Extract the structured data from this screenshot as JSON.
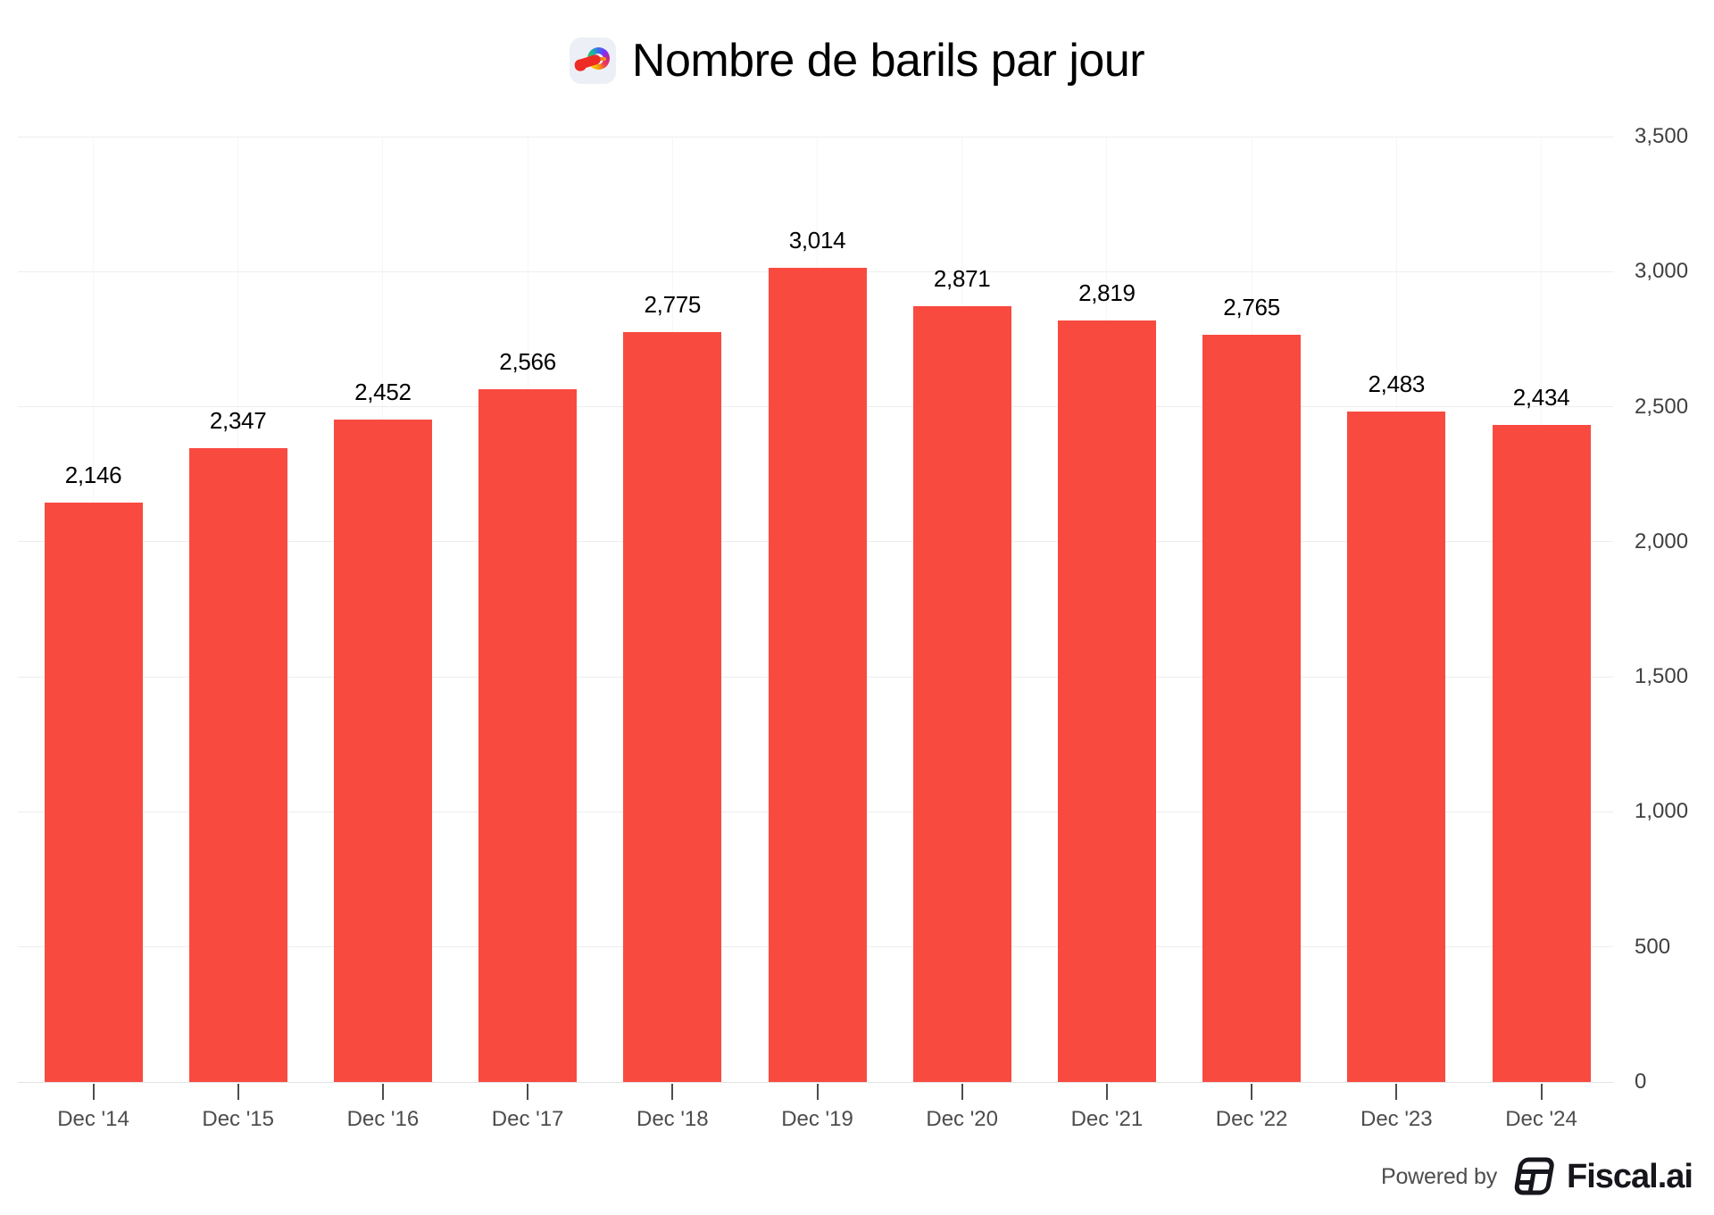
{
  "header": {
    "title": "Nombre de barils par jour",
    "logo": "totalenergies-logo"
  },
  "chart_data": {
    "type": "bar",
    "title": "Nombre de barils par jour",
    "categories": [
      "Dec '14",
      "Dec '15",
      "Dec '16",
      "Dec '17",
      "Dec '18",
      "Dec '19",
      "Dec '20",
      "Dec '21",
      "Dec '22",
      "Dec '23",
      "Dec '24"
    ],
    "values": [
      2146,
      2347,
      2452,
      2566,
      2775,
      3014,
      2871,
      2819,
      2765,
      2483,
      2434
    ],
    "value_labels": [
      "2,146",
      "2,347",
      "2,452",
      "2,566",
      "2,775",
      "3,014",
      "2,871",
      "2,819",
      "2,765",
      "2,483",
      "2,434"
    ],
    "xlabel": "",
    "ylabel": "",
    "ylim": [
      0,
      3500
    ],
    "yticks": [
      0,
      500,
      1000,
      1500,
      2000,
      2500,
      3000,
      3500
    ],
    "ytick_labels": [
      "0",
      "500",
      "1,000",
      "1,500",
      "2,000",
      "2,500",
      "3,000",
      "3,500"
    ],
    "y_axis_position": "right",
    "grid": true,
    "legend": false,
    "bar_color": "#F94A40",
    "label_color": "#000000",
    "axis_text_color": "#4d4d4d"
  },
  "footer": {
    "powered_by": "Powered by",
    "brand": "Fiscal.ai"
  }
}
